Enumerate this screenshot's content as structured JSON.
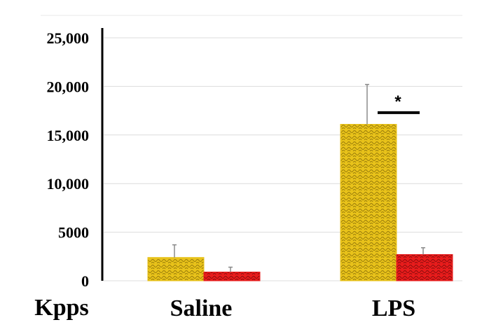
{
  "chart_data": {
    "type": "bar",
    "categories": [
      "Saline",
      "LPS"
    ],
    "series": [
      {
        "color": "#E8C21A",
        "values": [
          2400,
          16100
        ],
        "errors": [
          1300,
          4100
        ]
      },
      {
        "color": "#E81C1C",
        "values": [
          900,
          2700
        ],
        "errors": [
          500,
          700
        ]
      }
    ],
    "ylim": [
      0,
      25000
    ],
    "yticks": [
      0,
      5000,
      10000,
      15000,
      20000,
      25000
    ],
    "ytick_labels": [
      "0",
      "5000",
      "10,000",
      "15,000",
      "20,000",
      "25,000"
    ],
    "unit_label": "Kpps",
    "grid": true,
    "annotations": [
      {
        "text": "*",
        "category": "LPS"
      }
    ]
  }
}
